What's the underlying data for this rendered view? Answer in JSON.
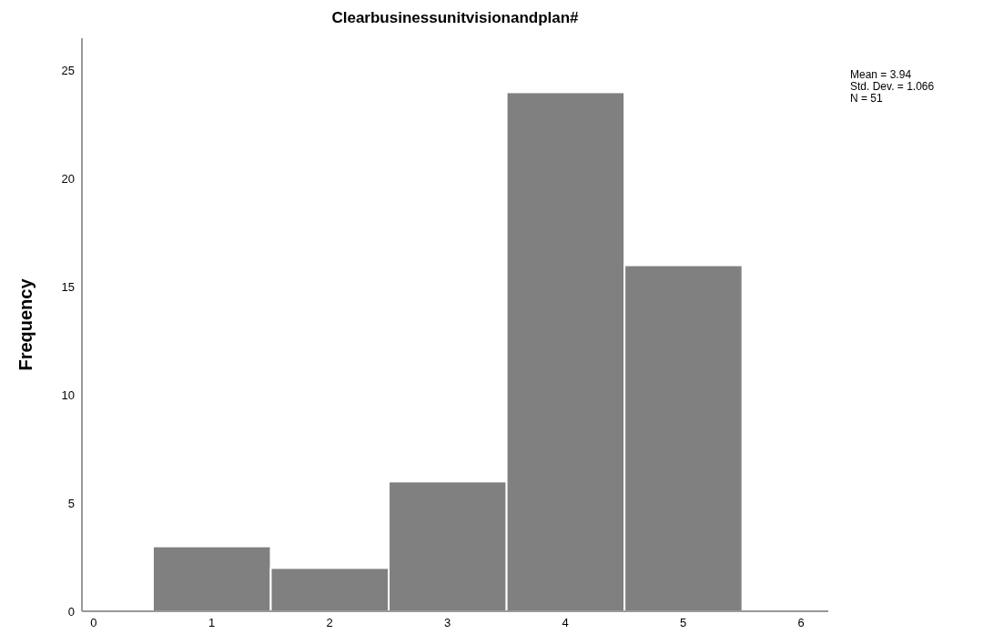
{
  "chart_data": {
    "type": "histogram",
    "title": "Clearbusinessunitvisionandplan#",
    "ylabel": "Frequency",
    "bins": [
      0.5,
      1.5,
      2.5,
      3.5,
      4.5,
      5.5
    ],
    "values": [
      3,
      2,
      6,
      24,
      16
    ],
    "color": "#808080",
    "xlim": [
      -0.1,
      6.23
    ],
    "xticks": [
      0,
      1,
      2,
      3,
      4,
      5,
      6
    ],
    "ylim": [
      0,
      26.5
    ],
    "yticks": [
      0,
      5,
      10,
      15,
      20,
      25
    ],
    "annotations": [
      "Mean = 3.94",
      "Std. Dev. = 1.066",
      "N = 51"
    ]
  }
}
